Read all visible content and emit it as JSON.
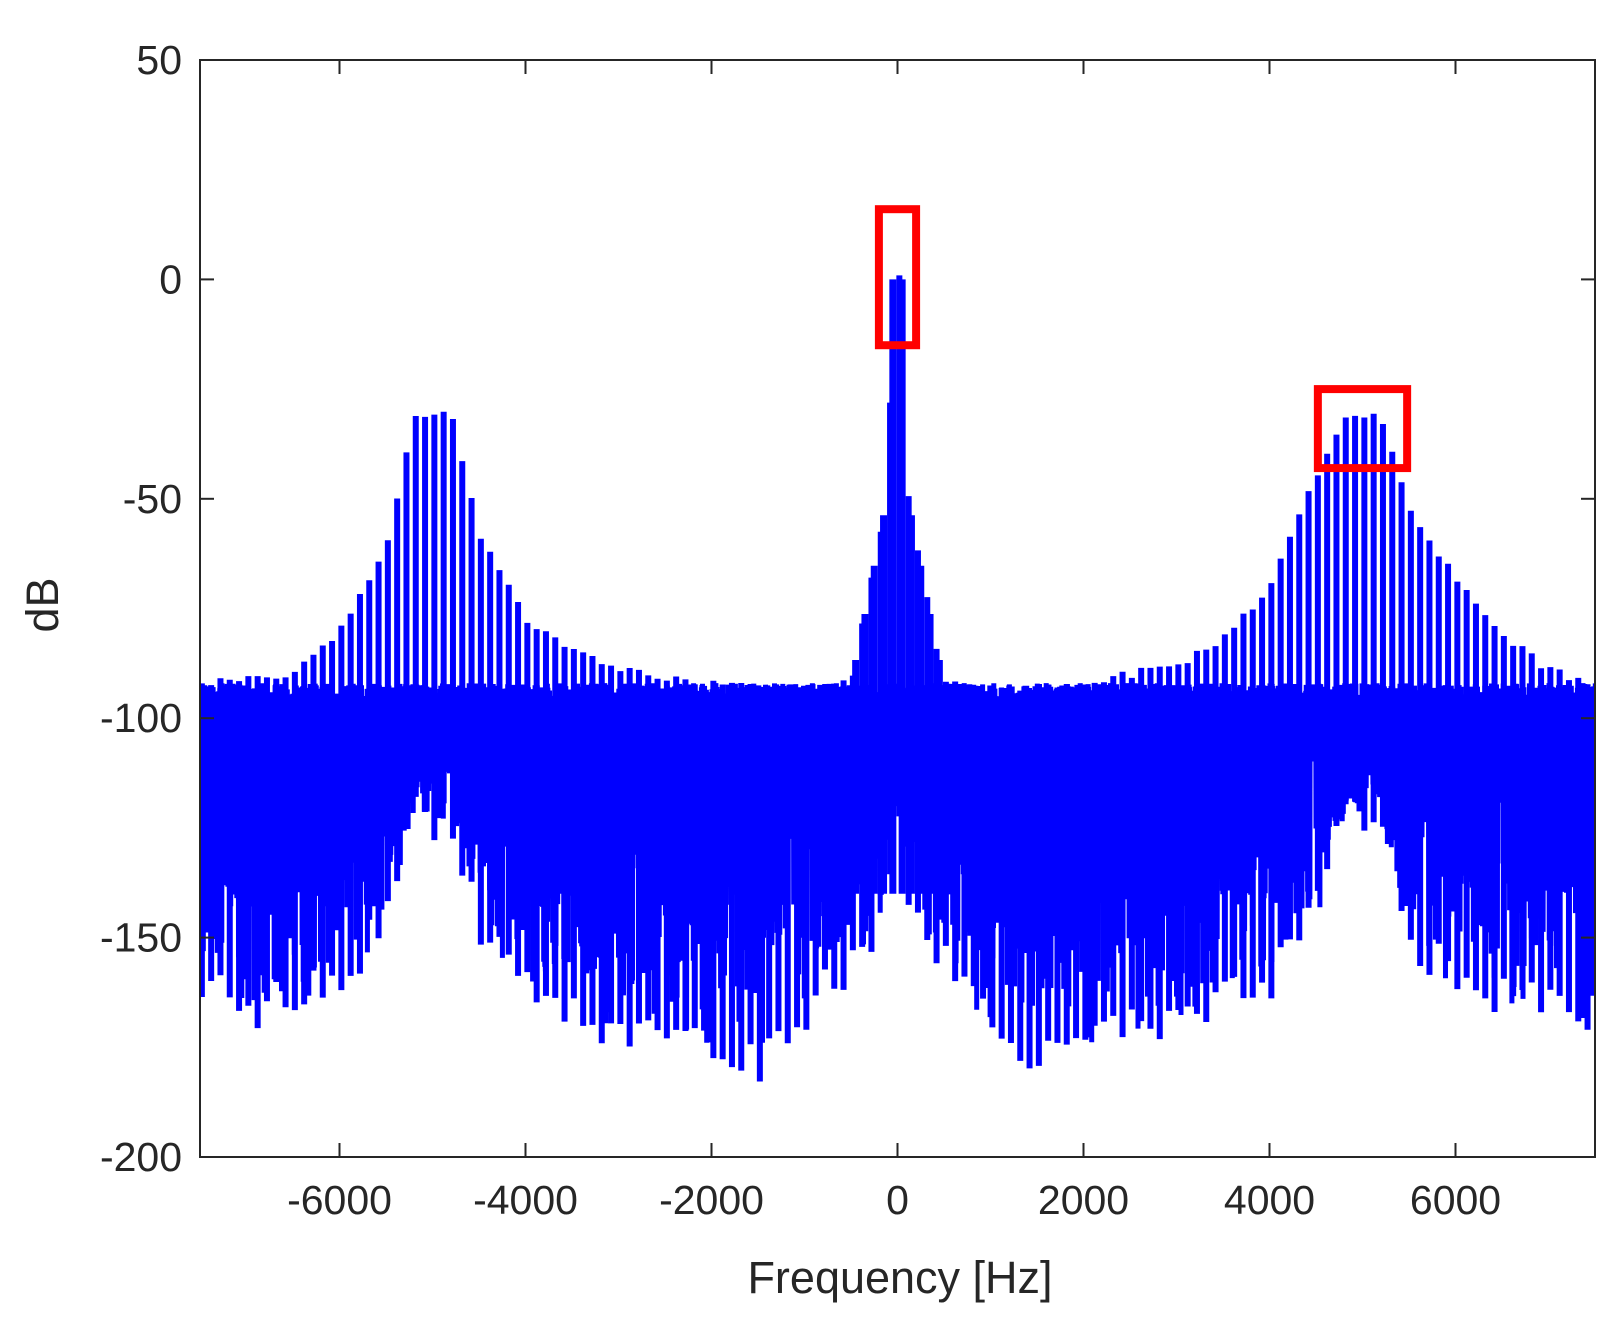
{
  "chart_data": {
    "type": "line",
    "title": "",
    "xlabel": "Frequency [Hz]",
    "ylabel": "dB",
    "xlim": [
      -7500,
      7500
    ],
    "ylim": [
      -200,
      50
    ],
    "x_ticks": [
      -6000,
      -4000,
      -2000,
      0,
      2000,
      4000,
      6000
    ],
    "x_tick_labels": [
      "-6000",
      "-4000",
      "-2000",
      "0",
      "2000",
      "4000",
      "6000"
    ],
    "y_ticks": [
      -200,
      -150,
      -100,
      -50,
      0,
      50
    ],
    "y_tick_labels": [
      "-200",
      "-150",
      "-100",
      "-50",
      "0",
      "50"
    ],
    "grid": false,
    "legend": "none",
    "series_color": "#0000ff",
    "highlight_color": "#ff0000",
    "series": [
      {
        "description_of_shape": "dense harmonic spectrum",
        "x": [
          -7500,
          -7000,
          -6500,
          -6000,
          -5500,
          -5200,
          -5000,
          -4800,
          -4500,
          -4000,
          -3500,
          -3000,
          -2500,
          -2000,
          -1500,
          -1000,
          -500,
          -300,
          -100,
          -50,
          0,
          50,
          100,
          300,
          500,
          1000,
          1500,
          2000,
          2500,
          3000,
          3500,
          4000,
          4500,
          4800,
          5000,
          5200,
          5500,
          6000,
          6500,
          7000,
          7500
        ],
        "peak_envelope": [
          -92,
          -91,
          -90,
          -80,
          -62,
          -31,
          -32,
          -30,
          -58,
          -77,
          -85,
          -89,
          -91,
          -92,
          -93,
          -94,
          -92,
          -71,
          -48,
          0,
          0,
          0,
          -48,
          -71,
          -92,
          -94,
          -93,
          -92,
          -90,
          -88,
          -82,
          -70,
          -45,
          -31,
          -32,
          -31,
          -52,
          -68,
          -81,
          -89,
          -92
        ],
        "floor_min": [
          -165,
          -172,
          -168,
          -165,
          -150,
          -125,
          -128,
          -126,
          -152,
          -165,
          -172,
          -178,
          -175,
          -180,
          -185,
          -172,
          -160,
          -155,
          -145,
          -130,
          -132,
          -130,
          -145,
          -155,
          -160,
          -172,
          -185,
          -178,
          -175,
          -176,
          -170,
          -165,
          -150,
          -125,
          -128,
          -125,
          -155,
          -165,
          -168,
          -170,
          -172
        ]
      }
    ],
    "highlights": [
      {
        "x_range": [
          -200,
          200
        ],
        "y_range": [
          -15,
          16
        ]
      },
      {
        "x_range": [
          4520,
          5480
        ],
        "y_range": [
          -43,
          -25
        ]
      }
    ]
  }
}
